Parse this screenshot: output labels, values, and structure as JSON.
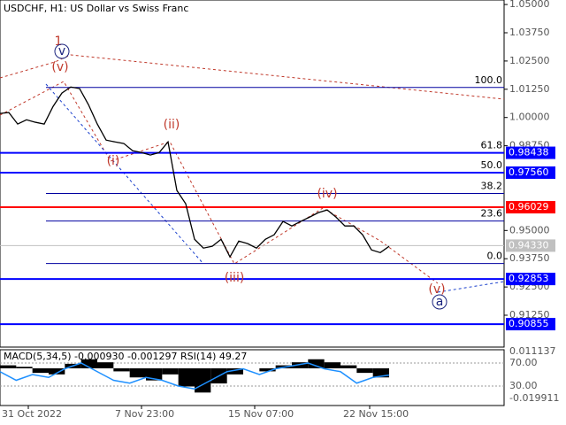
{
  "chart_data": {
    "type": "line",
    "title": "USDCHF, H1:  US Dollar vs Swiss Franc",
    "ylim": [
      0.8984,
      1.052
    ],
    "yticks": [
      {
        "value": 1.05,
        "label": "1.05000"
      },
      {
        "value": 1.0375,
        "label": "1.03750"
      },
      {
        "value": 1.025,
        "label": "1.02500"
      },
      {
        "value": 1.0125,
        "label": "1.01250"
      },
      {
        "value": 1.0,
        "label": "1.00000"
      },
      {
        "value": 0.9875,
        "label": "0.98750"
      },
      {
        "value": 0.95,
        "label": "0.95000"
      },
      {
        "value": 0.9375,
        "label": "0.93750"
      },
      {
        "value": 0.925,
        "label": "0.92500"
      },
      {
        "value": 0.9125,
        "label": "0.91250"
      }
    ],
    "x_labels": [
      "31 Oct 2022",
      "7 Nov 23:00",
      "15 Nov 07:00",
      "22 Nov 15:00"
    ],
    "series": [
      {
        "name": "USDCHF",
        "color": "#000000",
        "values": [
          1.0018,
          1.0022,
          0.9971,
          0.999,
          0.9979,
          0.9971,
          1.0049,
          1.0108,
          1.0135,
          1.0128,
          1.0057,
          0.9971,
          0.99,
          0.9892,
          0.9885,
          0.9853,
          0.9845,
          0.9834,
          0.9845,
          0.9892,
          0.9677,
          0.9618,
          0.9461,
          0.9422,
          0.943,
          0.9461,
          0.9383,
          0.9453,
          0.9442,
          0.9422,
          0.9461,
          0.9481,
          0.954,
          0.952,
          0.954,
          0.9559,
          0.9579,
          0.9591,
          0.9559,
          0.952,
          0.952,
          0.9481,
          0.9414,
          0.9402,
          0.943
        ]
      }
    ],
    "levels": [
      {
        "value": 0.98438,
        "label": "0.98438",
        "color": "#0000ff"
      },
      {
        "value": 0.9756,
        "label": "0.97560",
        "color": "#0000ff"
      },
      {
        "value": 0.96029,
        "label": "0.96029",
        "color": "#ff0000"
      },
      {
        "value": 0.9433,
        "label": "0.94330",
        "color": "#c0c0c0"
      },
      {
        "value": 0.92853,
        "label": "0.92853",
        "color": "#0000ff"
      },
      {
        "value": 0.90855,
        "label": "0.90855",
        "color": "#0000ff"
      }
    ],
    "fib_levels": [
      {
        "value": 1.0133,
        "label": "100.0"
      },
      {
        "value": 0.98438,
        "label": "61.8"
      },
      {
        "value": 0.9756,
        "label": "50.0"
      },
      {
        "value": 0.9664,
        "label": "38.2"
      },
      {
        "value": 0.9542,
        "label": "23.6"
      },
      {
        "value": 0.9354,
        "label": "0.0"
      }
    ],
    "waves": [
      "1",
      "v",
      "(v)",
      "(i)",
      "(ii)",
      "(iii)",
      "(iv)",
      "(v)",
      "a"
    ],
    "indicator": {
      "title": "MACD(5,34,5) -0.000930 -0.001297 RSI(14) 49.27",
      "ylim": [
        -0.019911,
        0.011137
      ],
      "yticks": [
        {
          "value": 0.011137,
          "label": "0.011137"
        },
        {
          "value": -0.019911,
          "label": "-0.019911"
        }
      ],
      "rsi_ticks": [
        {
          "value": 70,
          "label": "70.00"
        },
        {
          "value": 30,
          "label": "30.00"
        }
      ],
      "macd": [
        0.002,
        0.001,
        -0.003,
        -0.004,
        0.003,
        0.006,
        0.004,
        -0.002,
        -0.006,
        -0.008,
        -0.004,
        -0.012,
        -0.016,
        -0.01,
        -0.004,
        0,
        -0.002,
        0.002,
        0.004,
        0.006,
        0.004,
        0.002,
        -0.003,
        -0.006
      ],
      "rsi": [
        55,
        40,
        50,
        45,
        60,
        70,
        55,
        40,
        35,
        45,
        40,
        30,
        25,
        40,
        55,
        60,
        50,
        60,
        65,
        70,
        60,
        55,
        35,
        45,
        49
      ]
    }
  }
}
